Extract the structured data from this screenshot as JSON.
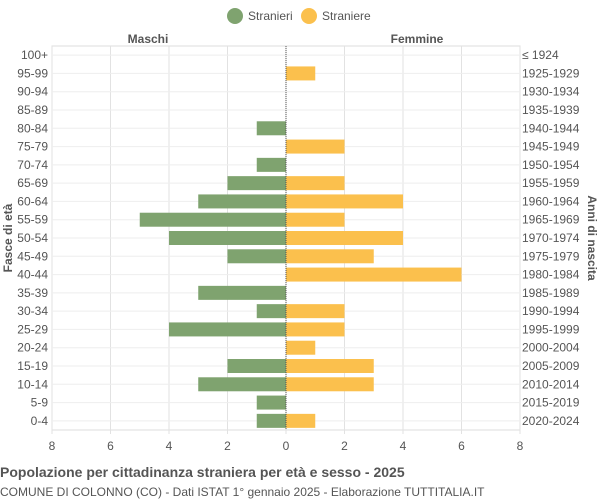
{
  "chart_data": {
    "type": "bar",
    "orientation": "horizontal-population-pyramid",
    "title": "Popolazione per cittadinanza straniera per età e sesso - 2025",
    "subtitle": "COMUNE DI COLONNO (CO) - Dati ISTAT 1° gennaio 2025 - Elaborazione TUTTITALIA.IT",
    "left_header": "Maschi",
    "right_header": "Femmine",
    "left_axis_label": "Fasce di età",
    "right_axis_label": "Anni di nascita",
    "age_groups": [
      "100+",
      "95-99",
      "90-94",
      "85-89",
      "80-84",
      "75-79",
      "70-74",
      "65-69",
      "60-64",
      "55-59",
      "50-54",
      "45-49",
      "40-44",
      "35-39",
      "30-34",
      "25-29",
      "20-24",
      "15-19",
      "10-14",
      "5-9",
      "0-4"
    ],
    "birth_years": [
      "≤ 1924",
      "1925-1929",
      "1930-1934",
      "1935-1939",
      "1940-1944",
      "1945-1949",
      "1950-1954",
      "1955-1959",
      "1960-1964",
      "1965-1969",
      "1970-1974",
      "1975-1979",
      "1980-1984",
      "1985-1989",
      "1990-1994",
      "1995-1999",
      "2000-2004",
      "2005-2009",
      "2010-2014",
      "2015-2019",
      "2020-2024"
    ],
    "series": [
      {
        "name": "Stranieri",
        "color": "#7fa36f",
        "values": [
          0,
          0,
          0,
          0,
          1,
          0,
          1,
          2,
          3,
          5,
          4,
          2,
          0,
          3,
          1,
          4,
          0,
          2,
          3,
          1,
          1
        ]
      },
      {
        "name": "Straniere",
        "color": "#fbc04d",
        "values": [
          0,
          1,
          0,
          0,
          0,
          2,
          0,
          2,
          4,
          2,
          4,
          3,
          6,
          0,
          2,
          2,
          1,
          3,
          3,
          0,
          1
        ]
      }
    ],
    "x_ticks": [
      "8",
      "6",
      "4",
      "2",
      "0",
      "2",
      "4",
      "6",
      "8"
    ],
    "xlim": [
      -8,
      8
    ],
    "grid": true,
    "legend_position": "top-center"
  }
}
